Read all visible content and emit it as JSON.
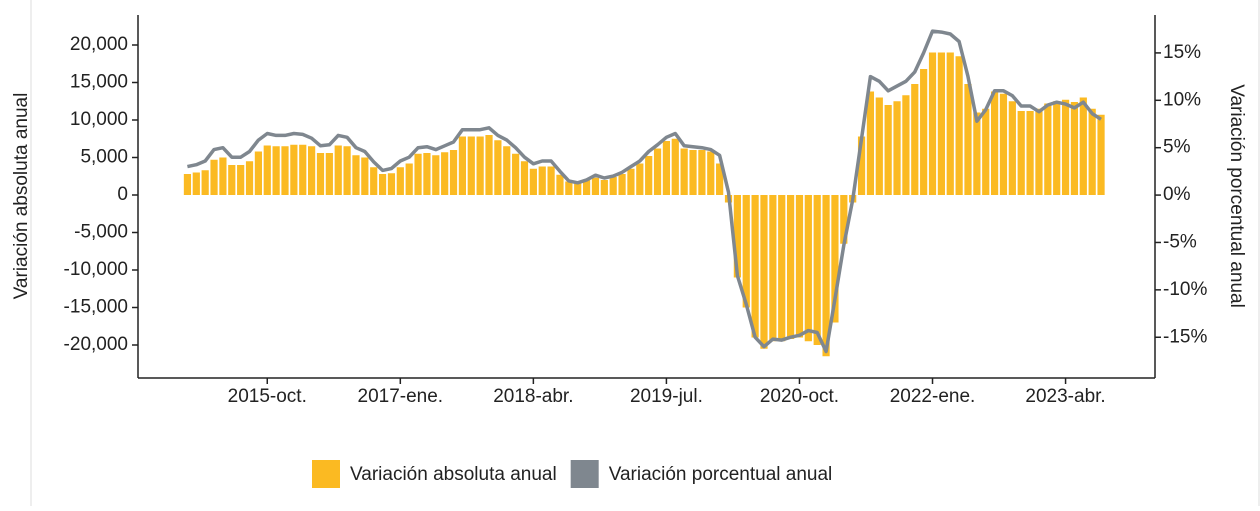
{
  "chart_data": {
    "type": "bar",
    "y_label": "Variación absoluta anual",
    "y2_label": "Variación porcentual anual",
    "categories": [
      null,
      null,
      null,
      null,
      null,
      null,
      null,
      null,
      null,
      "2015-oct.",
      null,
      null,
      null,
      null,
      null,
      null,
      null,
      null,
      null,
      null,
      null,
      null,
      null,
      null,
      "2017-ene.",
      null,
      null,
      null,
      null,
      null,
      null,
      null,
      null,
      null,
      null,
      null,
      null,
      null,
      null,
      "2018-abr.",
      null,
      null,
      null,
      null,
      null,
      null,
      null,
      null,
      null,
      null,
      null,
      null,
      null,
      null,
      "2019-jul.",
      null,
      null,
      null,
      null,
      null,
      null,
      null,
      null,
      null,
      null,
      null,
      null,
      null,
      null,
      "2020-oct.",
      null,
      null,
      null,
      null,
      null,
      null,
      null,
      null,
      null,
      null,
      null,
      null,
      null,
      null,
      "2022-ene.",
      null,
      null,
      null,
      null,
      null,
      null,
      null,
      null,
      null,
      null,
      null,
      null,
      null,
      null,
      "2023-abr.",
      null,
      null,
      null,
      null
    ],
    "series": [
      {
        "name": "Variación absoluta anual",
        "type": "bar",
        "color": "#fbba22",
        "values": [
          2800,
          3000,
          3300,
          4700,
          5000,
          4000,
          4000,
          4500,
          5800,
          6600,
          6500,
          6500,
          6700,
          6700,
          6500,
          5600,
          5600,
          6600,
          6500,
          5300,
          5000,
          3700,
          2800,
          2900,
          3700,
          4200,
          5500,
          5600,
          5300,
          5700,
          6000,
          7800,
          7800,
          7800,
          8000,
          7300,
          6500,
          5500,
          4500,
          3500,
          3800,
          3800,
          2700,
          1800,
          1600,
          2000,
          2300,
          2000,
          2400,
          2800,
          3500,
          4200,
          5200,
          6200,
          7200,
          7500,
          6200,
          6000,
          6000,
          5800,
          4200,
          -1000,
          -11000,
          -15000,
          -19000,
          -20500,
          -19500,
          -19500,
          -19200,
          -19000,
          -19500,
          -20000,
          -21500,
          -17000,
          -6500,
          -1000,
          7800,
          13800,
          13000,
          12000,
          12500,
          13300,
          14800,
          16800,
          19000,
          19000,
          19000,
          18500,
          14800,
          11000,
          11500,
          13800,
          13500,
          12500,
          11200,
          11200,
          11500,
          12200,
          12500,
          12700,
          12400,
          13000,
          11500,
          10700
        ]
      },
      {
        "name": "Variación porcentual anual",
        "type": "line",
        "axis": "y2",
        "color": "#7f878f",
        "values": [
          3.0,
          3.2,
          3.6,
          4.8,
          5.0,
          4.0,
          4.0,
          4.6,
          5.8,
          6.5,
          6.3,
          6.3,
          6.5,
          6.4,
          6.0,
          5.2,
          5.3,
          6.3,
          6.1,
          5.0,
          4.6,
          3.5,
          2.6,
          2.8,
          3.6,
          4.0,
          5.0,
          5.1,
          4.8,
          5.2,
          5.6,
          6.9,
          6.9,
          6.9,
          7.1,
          6.3,
          5.8,
          5.0,
          4.0,
          3.3,
          3.6,
          3.6,
          2.5,
          1.5,
          1.3,
          1.6,
          2.1,
          1.8,
          2.0,
          2.4,
          3.0,
          3.6,
          4.6,
          5.3,
          6.1,
          6.5,
          5.2,
          5.1,
          5.0,
          4.8,
          4.2,
          0.3,
          -8.5,
          -11.5,
          -15.0,
          -16.0,
          -15.2,
          -15.3,
          -15.0,
          -14.8,
          -14.3,
          -14.5,
          -16.5,
          -11.0,
          -5.3,
          -0.5,
          6.0,
          12.5,
          12.0,
          11.0,
          11.5,
          12.0,
          13.0,
          15.0,
          17.3,
          17.2,
          17.0,
          16.2,
          12.5,
          7.8,
          9.0,
          11.0,
          11.0,
          10.5,
          9.4,
          9.4,
          8.8,
          9.5,
          9.8,
          9.6,
          9.2,
          9.8,
          8.6,
          8.0
        ]
      }
    ],
    "ylim": [
      -24400,
      24000
    ],
    "yticks": [
      {
        "value": -20000,
        "label": "-20,000"
      },
      {
        "value": -15000,
        "label": "-15,000"
      },
      {
        "value": -10000,
        "label": "-10,000"
      },
      {
        "value": -5000,
        "label": "-5,000"
      },
      0,
      {
        "value": 5000,
        "label": "5,000"
      },
      {
        "value": 10000,
        "label": "10,000"
      },
      {
        "value": 15000,
        "label": "15,000"
      },
      {
        "value": 20000,
        "label": "20,000"
      }
    ],
    "y2lim": [
      -19.3,
      19.0
    ],
    "y2ticks": [
      {
        "value": -15,
        "label": "-15%"
      },
      {
        "value": -10,
        "label": "-10%"
      },
      {
        "value": -5,
        "label": "-5%"
      },
      {
        "value": 0,
        "label": "0%"
      },
      {
        "value": 5,
        "label": "5%"
      },
      {
        "value": 10,
        "label": "10%"
      },
      {
        "value": 15,
        "label": "15%"
      }
    ],
    "legend": "bottom"
  }
}
